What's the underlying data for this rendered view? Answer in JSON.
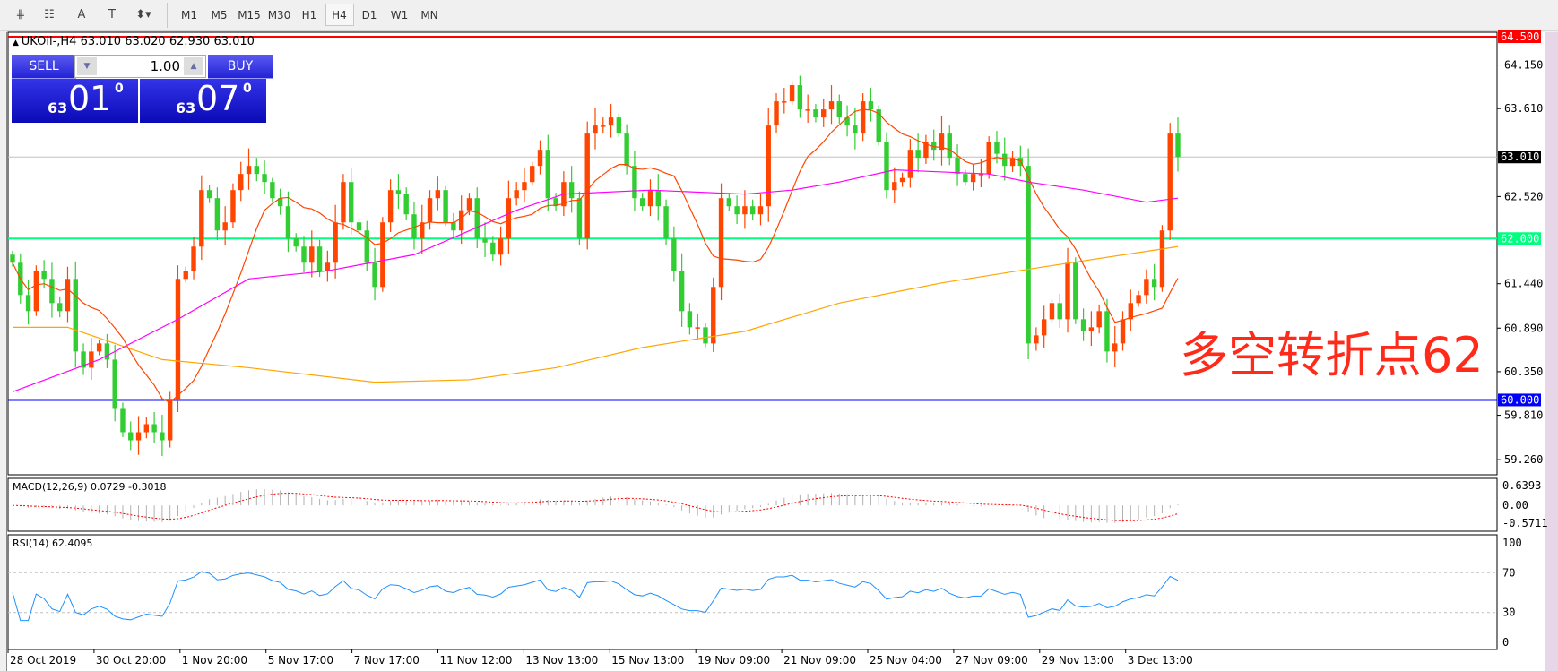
{
  "toolbar": {
    "tools": [
      {
        "name": "fibonacci-expansion-icon",
        "glyph": "⋕"
      },
      {
        "name": "fibonacci-fan-icon",
        "glyph": "☷"
      },
      {
        "name": "text-icon",
        "glyph": "A"
      },
      {
        "name": "text-label-icon",
        "glyph": "T"
      },
      {
        "name": "arrows-icon",
        "glyph": "⬍▾"
      }
    ],
    "timeframes": [
      "M1",
      "M5",
      "M15",
      "M30",
      "H1",
      "H4",
      "D1",
      "W1",
      "MN"
    ],
    "active_timeframe": "H4"
  },
  "chart": {
    "title": "UKOil-,H4  63.010 63.020 62.930 63.010",
    "annotation": "多空转折点62"
  },
  "trade_panel": {
    "sell_label": "SELL",
    "buy_label": "BUY",
    "lot": "1.00",
    "sell_price_prefix": "63",
    "sell_price_main": "01",
    "sell_price_sup": "0",
    "buy_price_prefix": "63",
    "buy_price_main": "07",
    "buy_price_sup": "0"
  },
  "indicators": {
    "macd_label": "MACD(12,26,9) 0.0729 -0.3018",
    "macd_ticks": [
      "0.6393",
      "0.00",
      "-0.5711"
    ],
    "rsi_label": "RSI(14) 62.4095",
    "rsi_ticks": [
      "100",
      "70",
      "30",
      "0"
    ]
  },
  "colors": {
    "bull": "#ff4500",
    "bear": "#32cd32",
    "ma_fast": "#ff4500",
    "ma_mid": "#ff00ff",
    "ma_slow": "#ffa500",
    "line_64_5": "#ff0000",
    "line_62": "#00ff7f",
    "line_60": "#0000ff",
    "rsi": "#1e90ff",
    "macd_signal": "#ff0000"
  },
  "chart_data": {
    "type": "candlestick",
    "symbol": "UKOil-",
    "timeframe": "H4",
    "ylim": [
      59.0,
      64.55
    ],
    "price_ticks": [
      "64.150",
      "63.610",
      "62.520",
      "61.440",
      "60.890",
      "60.350",
      "59.810",
      "59.260"
    ],
    "levels": [
      {
        "value": "64.500",
        "color": "#ff0000"
      },
      {
        "value": "63.010",
        "color": "#000000"
      },
      {
        "value": "62.000",
        "color": "#00ff7f"
      },
      {
        "value": "60.000",
        "color": "#0000ff"
      }
    ],
    "date_labels": [
      "28 Oct 2019",
      "30 Oct 20:00",
      "1 Nov 20:00",
      "5 Nov 17:00",
      "7 Nov 17:00",
      "11 Nov 12:00",
      "13 Nov 13:00",
      "15 Nov 13:00",
      "19 Nov 09:00",
      "21 Nov 09:00",
      "25 Nov 04:00",
      "27 Nov 09:00",
      "29 Nov 13:00",
      "3 Dec 13:00"
    ],
    "closes": [
      61.7,
      61.3,
      61.1,
      61.6,
      61.5,
      61.2,
      61.1,
      61.5,
      60.6,
      60.4,
      60.6,
      60.7,
      60.5,
      59.9,
      59.6,
      59.5,
      59.6,
      59.7,
      59.6,
      59.5,
      60.0,
      61.5,
      61.6,
      61.9,
      62.6,
      62.5,
      62.1,
      62.2,
      62.6,
      62.8,
      62.9,
      62.8,
      62.7,
      62.5,
      62.4,
      62.0,
      61.9,
      61.7,
      61.9,
      61.6,
      61.7,
      62.2,
      62.7,
      62.2,
      62.1,
      61.7,
      61.4,
      62.2,
      62.6,
      62.55,
      62.3,
      62.0,
      62.2,
      62.5,
      62.6,
      62.2,
      62.1,
      62.35,
      62.5,
      62.0,
      61.95,
      61.8,
      62.0,
      62.5,
      62.6,
      62.7,
      62.9,
      63.1,
      62.5,
      62.4,
      62.7,
      62.5,
      62.0,
      63.3,
      63.4,
      63.4,
      63.5,
      63.3,
      62.9,
      62.5,
      62.4,
      62.6,
      62.4,
      62.0,
      61.6,
      61.1,
      60.9,
      60.9,
      60.7,
      61.4,
      62.5,
      62.4,
      62.3,
      62.4,
      62.3,
      62.4,
      63.4,
      63.7,
      63.7,
      63.9,
      63.6,
      63.6,
      63.5,
      63.6,
      63.7,
      63.5,
      63.4,
      63.3,
      63.7,
      63.6,
      63.2,
      62.6,
      62.7,
      62.75,
      63.1,
      63.0,
      63.2,
      63.1,
      63.3,
      63.0,
      62.8,
      62.7,
      62.8,
      62.8,
      63.2,
      63.05,
      62.9,
      63.0,
      62.9,
      60.7,
      60.8,
      61.0,
      61.2,
      61.0,
      61.7,
      61.0,
      60.85,
      60.9,
      61.1,
      60.6,
      60.7,
      61.0,
      61.2,
      61.3,
      61.5,
      61.4,
      62.1,
      63.3,
      63.01
    ],
    "ma_mid": [
      [
        0,
        60.1
      ],
      [
        11,
        60.5
      ],
      [
        21,
        61.0
      ],
      [
        30,
        61.5
      ],
      [
        40,
        61.6
      ],
      [
        51,
        61.8
      ],
      [
        64,
        62.35
      ],
      [
        70,
        62.55
      ],
      [
        81,
        62.6
      ],
      [
        93,
        62.55
      ],
      [
        99,
        62.6
      ],
      [
        105,
        62.7
      ],
      [
        112,
        62.85
      ],
      [
        124,
        62.8
      ],
      [
        129,
        62.7
      ],
      [
        136,
        62.6
      ],
      [
        144,
        62.45
      ],
      [
        148,
        62.5
      ]
    ],
    "ma_slow": [
      [
        0,
        60.9
      ],
      [
        7,
        60.9
      ],
      [
        19,
        60.5
      ],
      [
        30,
        60.4
      ],
      [
        46,
        60.22
      ],
      [
        58,
        60.25
      ],
      [
        69,
        60.4
      ],
      [
        80,
        60.65
      ],
      [
        93,
        60.85
      ],
      [
        105,
        61.2
      ],
      [
        118,
        61.45
      ],
      [
        131,
        61.65
      ],
      [
        148,
        61.9
      ]
    ]
  }
}
